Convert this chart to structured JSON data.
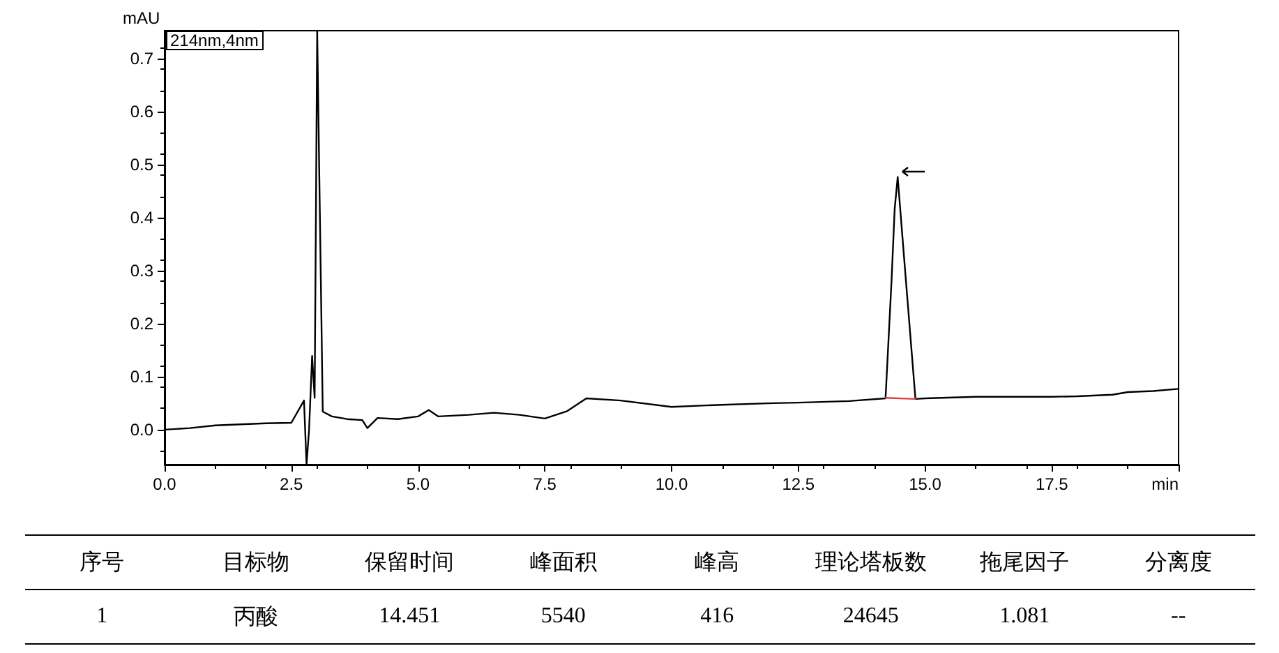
{
  "chart_data": {
    "type": "line",
    "xlabel": "min",
    "ylabel": "mAU",
    "annotations": [
      "214nm,4nm",
      "序号",
      "目标物",
      "保留时间",
      "峰面积",
      "峰高",
      "理论塔板数",
      "拖尾因子",
      "分离度",
      "1",
      "丙酸",
      "14.451",
      "5540",
      "416",
      "24645",
      "1.081",
      "--"
    ],
    "series": [
      {
        "color": "#000000",
        "x": [
          0,
          0.5,
          1.0,
          1.5,
          2.0,
          2.5,
          2.75,
          2.8,
          2.85,
          2.91,
          2.96,
          3.01,
          3.12,
          3.3,
          3.6,
          3.9,
          4.0,
          4.2,
          4.6,
          5.0,
          5.21,
          5.4,
          6.0,
          6.5,
          7.0,
          7.5,
          7.94,
          8.32,
          9.0,
          10.0,
          11.0,
          12.0,
          12.5,
          13.5,
          14.22,
          14.34,
          14.4,
          14.46,
          14.51,
          14.62,
          14.81,
          15.0,
          16.0,
          17.0,
          17.5,
          18.0,
          18.7,
          19.0,
          19.5,
          20.0
        ],
        "values": [
          0.0,
          0.003,
          0.008,
          0.01,
          0.012,
          0.013,
          0.055,
          -0.066,
          0.0,
          0.139,
          0.06,
          0.753,
          0.034,
          0.025,
          0.02,
          0.018,
          0.003,
          0.022,
          0.02,
          0.025,
          0.037,
          0.025,
          0.028,
          0.032,
          0.028,
          0.021,
          0.035,
          0.059,
          0.055,
          0.043,
          0.047,
          0.05,
          0.051,
          0.054,
          0.059,
          0.284,
          0.416,
          0.477,
          0.416,
          0.284,
          0.058,
          0.059,
          0.062,
          0.062,
          0.062,
          0.063,
          0.066,
          0.071,
          0.073,
          0.077
        ]
      },
      {
        "color": "#e04040",
        "x": [
          14.22,
          14.81
        ],
        "values": [
          0.06,
          0.058
        ]
      }
    ],
    "xlim": [
      0,
      20
    ],
    "xticks": [
      {
        "value": 0,
        "label": "0.0"
      },
      2.5,
      {
        "value": 5,
        "label": "5.0"
      },
      7.5,
      {
        "value": 10,
        "label": "10.0"
      },
      12.5,
      {
        "value": 15,
        "label": "15.0"
      },
      17.5,
      {
        "value": 20,
        "label": null
      }
    ],
    "ylim": [
      -0.066,
      0.753
    ],
    "yticks": [
      {
        "value": 0,
        "label": "0.0"
      },
      0.1,
      0.2,
      0.3,
      0.4,
      0.5,
      0.6,
      0.7
    ],
    "grid": false,
    "marker": "none",
    "line_style": "solid"
  }
}
